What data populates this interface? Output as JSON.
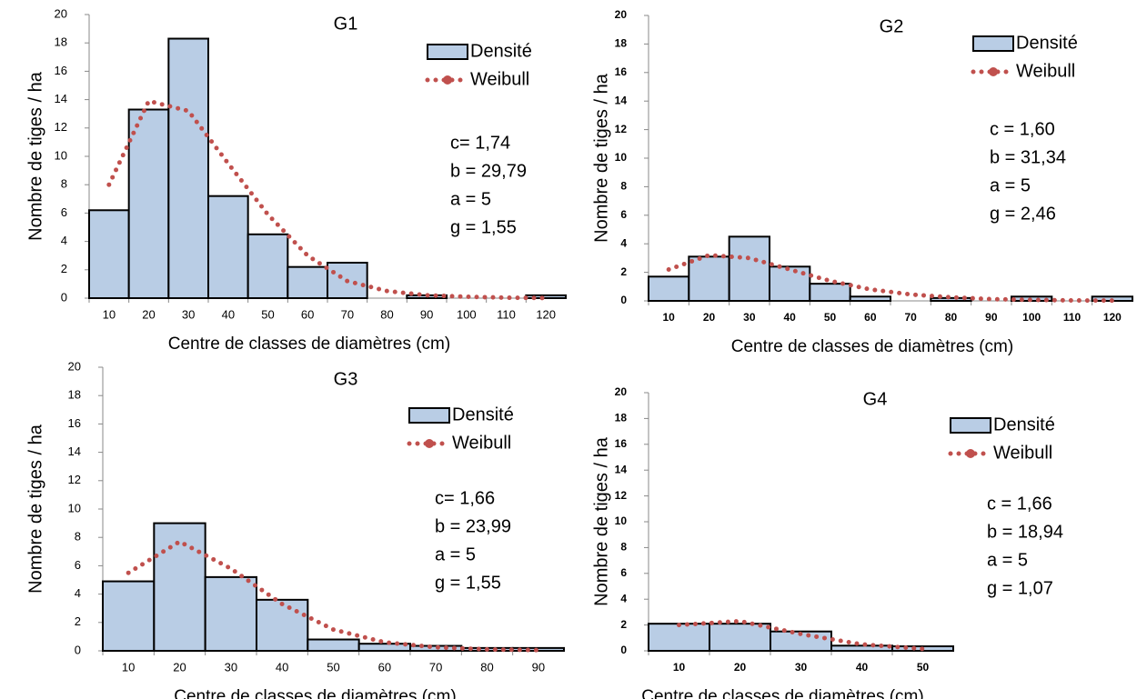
{
  "chart_data": [
    {
      "type": "bar",
      "title": "G1",
      "ylabel": "Nombre de tiges / ha",
      "xlabel": "Centre de classes de diamètres (cm)",
      "categories": [
        "10",
        "20",
        "30",
        "40",
        "50",
        "60",
        "70",
        "80",
        "90",
        "100",
        "110",
        "120"
      ],
      "series": [
        {
          "name": "Densité",
          "type": "bar",
          "color": "#b9cde5",
          "values": [
            6.2,
            13.3,
            18.3,
            7.2,
            4.5,
            2.2,
            2.5,
            0,
            0.2,
            0,
            0,
            0.2
          ]
        },
        {
          "name": "Weibull",
          "type": "line",
          "color": "#c0504d",
          "values": [
            8,
            13.9,
            13.2,
            9.5,
            5.9,
            3.0,
            1.2,
            0.5,
            0.2,
            0.1,
            0.03,
            0.01
          ]
        }
      ],
      "annotations": [
        "c= 1,74",
        "b = 29,79",
        "a = 5",
        "g = 1,55"
      ],
      "ylim": [
        0,
        20
      ],
      "yticks": [
        0,
        2,
        4,
        6,
        8,
        10,
        12,
        14,
        16,
        18,
        20
      ],
      "bold_ticks": false
    },
    {
      "type": "bar",
      "title": "G2",
      "ylabel": "Nombre de tiges / ha",
      "xlabel": "Centre de classes de diamètres (cm)",
      "categories": [
        "10",
        "20",
        "30",
        "40",
        "50",
        "60",
        "70",
        "80",
        "90",
        "100",
        "110",
        "120"
      ],
      "series": [
        {
          "name": "Densité",
          "type": "bar",
          "color": "#b9cde5",
          "values": [
            1.7,
            3.1,
            4.5,
            2.4,
            1.2,
            0.3,
            0,
            0.2,
            0,
            0.3,
            0,
            0.3
          ]
        },
        {
          "name": "Weibull",
          "type": "line",
          "color": "#c0504d",
          "values": [
            2.2,
            3.2,
            3.0,
            2.2,
            1.4,
            0.8,
            0.45,
            0.25,
            0.12,
            0.07,
            0.03,
            0.02
          ]
        }
      ],
      "annotations": [
        "c = 1,60",
        "b = 31,34",
        "a = 5",
        "g = 2,46"
      ],
      "ylim": [
        0,
        20
      ],
      "yticks": [
        0,
        2,
        4,
        6,
        8,
        10,
        12,
        14,
        16,
        18,
        20
      ],
      "bold_ticks": true
    },
    {
      "type": "bar",
      "title": "G3",
      "ylabel": "Nombre de tiges / ha",
      "xlabel": "Centre de classes de diamètres (cm)",
      "categories": [
        "10",
        "20",
        "30",
        "40",
        "50",
        "60",
        "70",
        "80",
        "90"
      ],
      "series": [
        {
          "name": "Densité",
          "type": "bar",
          "color": "#b9cde5",
          "values": [
            4.9,
            9.0,
            5.2,
            3.6,
            0.8,
            0.5,
            0.35,
            0.2,
            0.2
          ]
        },
        {
          "name": "Weibull",
          "type": "line",
          "color": "#c0504d",
          "values": [
            5.5,
            7.7,
            5.8,
            3.3,
            1.5,
            0.6,
            0.25,
            0.1,
            0.05
          ]
        }
      ],
      "annotations": [
        "c= 1,66",
        "b = 23,99",
        "a = 5",
        "g = 1,55"
      ],
      "ylim": [
        0,
        20
      ],
      "yticks": [
        0,
        2,
        4,
        6,
        8,
        10,
        12,
        14,
        16,
        18,
        20
      ],
      "bold_ticks": false
    },
    {
      "type": "bar",
      "title": "G4",
      "ylabel": "Nombre de tiges / ha",
      "xlabel": "Centre de classes de diamètres (cm)",
      "categories": [
        "10",
        "20",
        "30",
        "40",
        "50"
      ],
      "series": [
        {
          "name": "Densité",
          "type": "bar",
          "color": "#b9cde5",
          "values": [
            2.1,
            2.1,
            1.5,
            0.4,
            0.35
          ]
        },
        {
          "name": "Weibull",
          "type": "line",
          "color": "#c0504d",
          "values": [
            2.0,
            2.3,
            1.3,
            0.5,
            0.15
          ]
        }
      ],
      "annotations": [
        "c = 1,66",
        "b = 18,94",
        "a = 5",
        "g = 1,07"
      ],
      "ylim": [
        0,
        20
      ],
      "yticks": [
        0,
        2,
        4,
        6,
        8,
        10,
        12,
        14,
        16,
        18,
        20
      ],
      "bold_ticks": true
    }
  ]
}
